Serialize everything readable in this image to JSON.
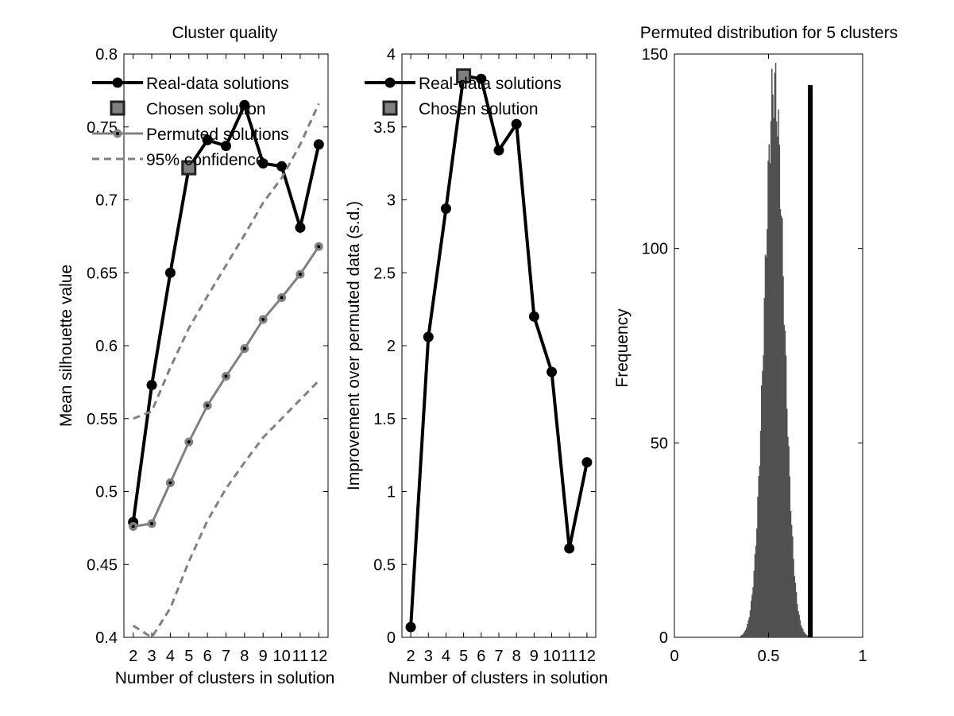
{
  "chart_data": [
    {
      "type": "line",
      "title": "Cluster quality",
      "xlabel": "Number of clusters in solution",
      "ylabel": "Mean silhouette value",
      "xlim": [
        1.5,
        12.5
      ],
      "ylim": [
        0.4,
        0.8
      ],
      "xticks": [
        2,
        3,
        4,
        5,
        6,
        7,
        8,
        9,
        10,
        11,
        12
      ],
      "yticks": [
        0.4,
        0.45,
        0.5,
        0.55,
        0.6,
        0.65,
        0.7,
        0.75,
        0.8
      ],
      "ytick_labels": [
        "0.4",
        "0.45",
        "0.5",
        "0.55",
        "0.6",
        "0.65",
        "0.7",
        "0.75",
        "0.8"
      ],
      "x": [
        2,
        3,
        4,
        5,
        6,
        7,
        8,
        9,
        10,
        11,
        12
      ],
      "series": [
        {
          "name": "Real-data solutions",
          "values": [
            0.479,
            0.573,
            0.65,
            0.722,
            0.741,
            0.737,
            0.765,
            0.725,
            0.723,
            0.681,
            0.738
          ],
          "color": "#000000",
          "style": "solid-marker"
        },
        {
          "name": "Chosen solution",
          "x": [
            5
          ],
          "values": [
            0.722
          ],
          "color": "#808080",
          "style": "square"
        },
        {
          "name": "Permuted solutions",
          "values": [
            0.476,
            0.478,
            0.506,
            0.534,
            0.559,
            0.579,
            0.598,
            0.618,
            0.633,
            0.649,
            0.668
          ],
          "color": "#808080",
          "style": "solid-marker"
        },
        {
          "name": "95% confidence",
          "values": [
            0.55,
            0.555,
            0.585,
            0.612,
            0.634,
            0.655,
            0.676,
            0.698,
            0.715,
            0.738,
            0.766
          ],
          "color": "#808080",
          "style": "dashed"
        },
        {
          "name": "",
          "values": [
            0.408,
            0.4,
            0.42,
            0.452,
            0.48,
            0.502,
            0.52,
            0.537,
            0.55,
            0.563,
            0.576
          ],
          "color": "#808080",
          "style": "dashed"
        }
      ],
      "legend": "top-left",
      "grid": false
    },
    {
      "type": "line",
      "title": "",
      "xlabel": "Number of clusters in solution",
      "ylabel": "Improvement over permuted data (s.d.)",
      "xlim": [
        1.5,
        12.5
      ],
      "ylim": [
        0,
        4
      ],
      "xticks": [
        2,
        3,
        4,
        5,
        6,
        7,
        8,
        9,
        10,
        11,
        12
      ],
      "yticks": [
        0,
        0.5,
        1,
        1.5,
        2,
        2.5,
        3,
        3.5,
        4
      ],
      "ytick_labels": [
        "0",
        "0.5",
        "1",
        "1.5",
        "2",
        "2.5",
        "3",
        "3.5",
        "4"
      ],
      "x": [
        2,
        3,
        4,
        5,
        6,
        7,
        8,
        9,
        10,
        11,
        12
      ],
      "series": [
        {
          "name": "Real-data solutions",
          "values": [
            0.07,
            2.06,
            2.94,
            3.85,
            3.83,
            3.34,
            3.52,
            2.2,
            1.82,
            0.61,
            1.2
          ],
          "color": "#000000",
          "style": "solid-marker"
        },
        {
          "name": "Chosen solution",
          "x": [
            5
          ],
          "values": [
            3.85
          ],
          "color": "#808080",
          "style": "square"
        }
      ],
      "legend": "top-left",
      "grid": false
    },
    {
      "type": "bar",
      "title": "Permuted distribution for 5 clusters",
      "xlabel": "",
      "ylabel": "Frequency",
      "xlim": [
        0,
        1
      ],
      "ylim": [
        0,
        150
      ],
      "xticks": [
        0,
        0.5,
        1
      ],
      "xtick_labels": [
        "0",
        "0.5",
        "1"
      ],
      "yticks": [
        0,
        50,
        100,
        150
      ],
      "ytick_labels": [
        "0",
        "50",
        "100",
        "150"
      ],
      "histogram": {
        "mean": 0.53,
        "sd": 0.052,
        "peak_count": 142,
        "color": "#505050"
      },
      "marker_line": {
        "x": 0.722,
        "height": 142,
        "color": "#000000"
      }
    }
  ],
  "legend": {
    "panel1": [
      "Real-data solutions",
      "Chosen solution",
      "Permuted solutions",
      "95% confidence"
    ],
    "panel2": [
      "Real-data solutions",
      "Chosen solution"
    ]
  }
}
